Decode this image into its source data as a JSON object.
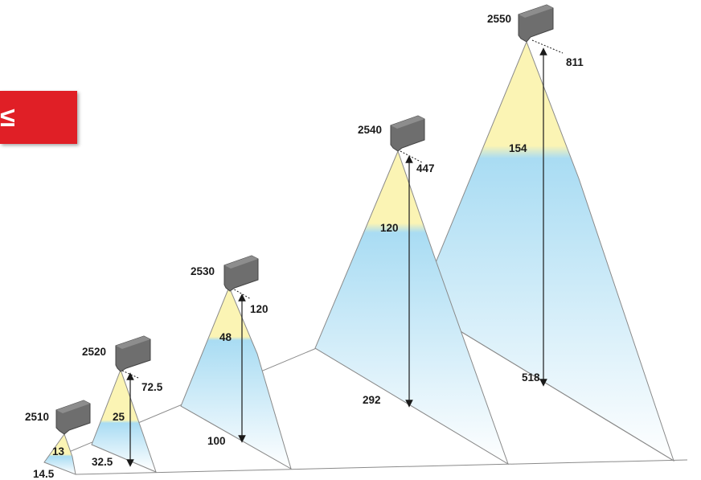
{
  "badge": {
    "text": "≤"
  },
  "units": [
    {
      "model": "2510",
      "distance": "14.5",
      "height": null,
      "band": "13"
    },
    {
      "model": "2520",
      "distance": "32.5",
      "height": "72.5",
      "band": "25"
    },
    {
      "model": "2530",
      "distance": "100",
      "height": "120",
      "band": "48"
    },
    {
      "model": "2540",
      "distance": "292",
      "height": "447",
      "band": "120"
    },
    {
      "model": "2550",
      "distance": "518",
      "height": "811",
      "band": "154"
    }
  ],
  "colors": {
    "yellow": "#fbf4b4",
    "blue": "#a9dcf3",
    "line": "#8a8a8a",
    "device": "#6e6e6e",
    "badge": "#e01f26"
  }
}
